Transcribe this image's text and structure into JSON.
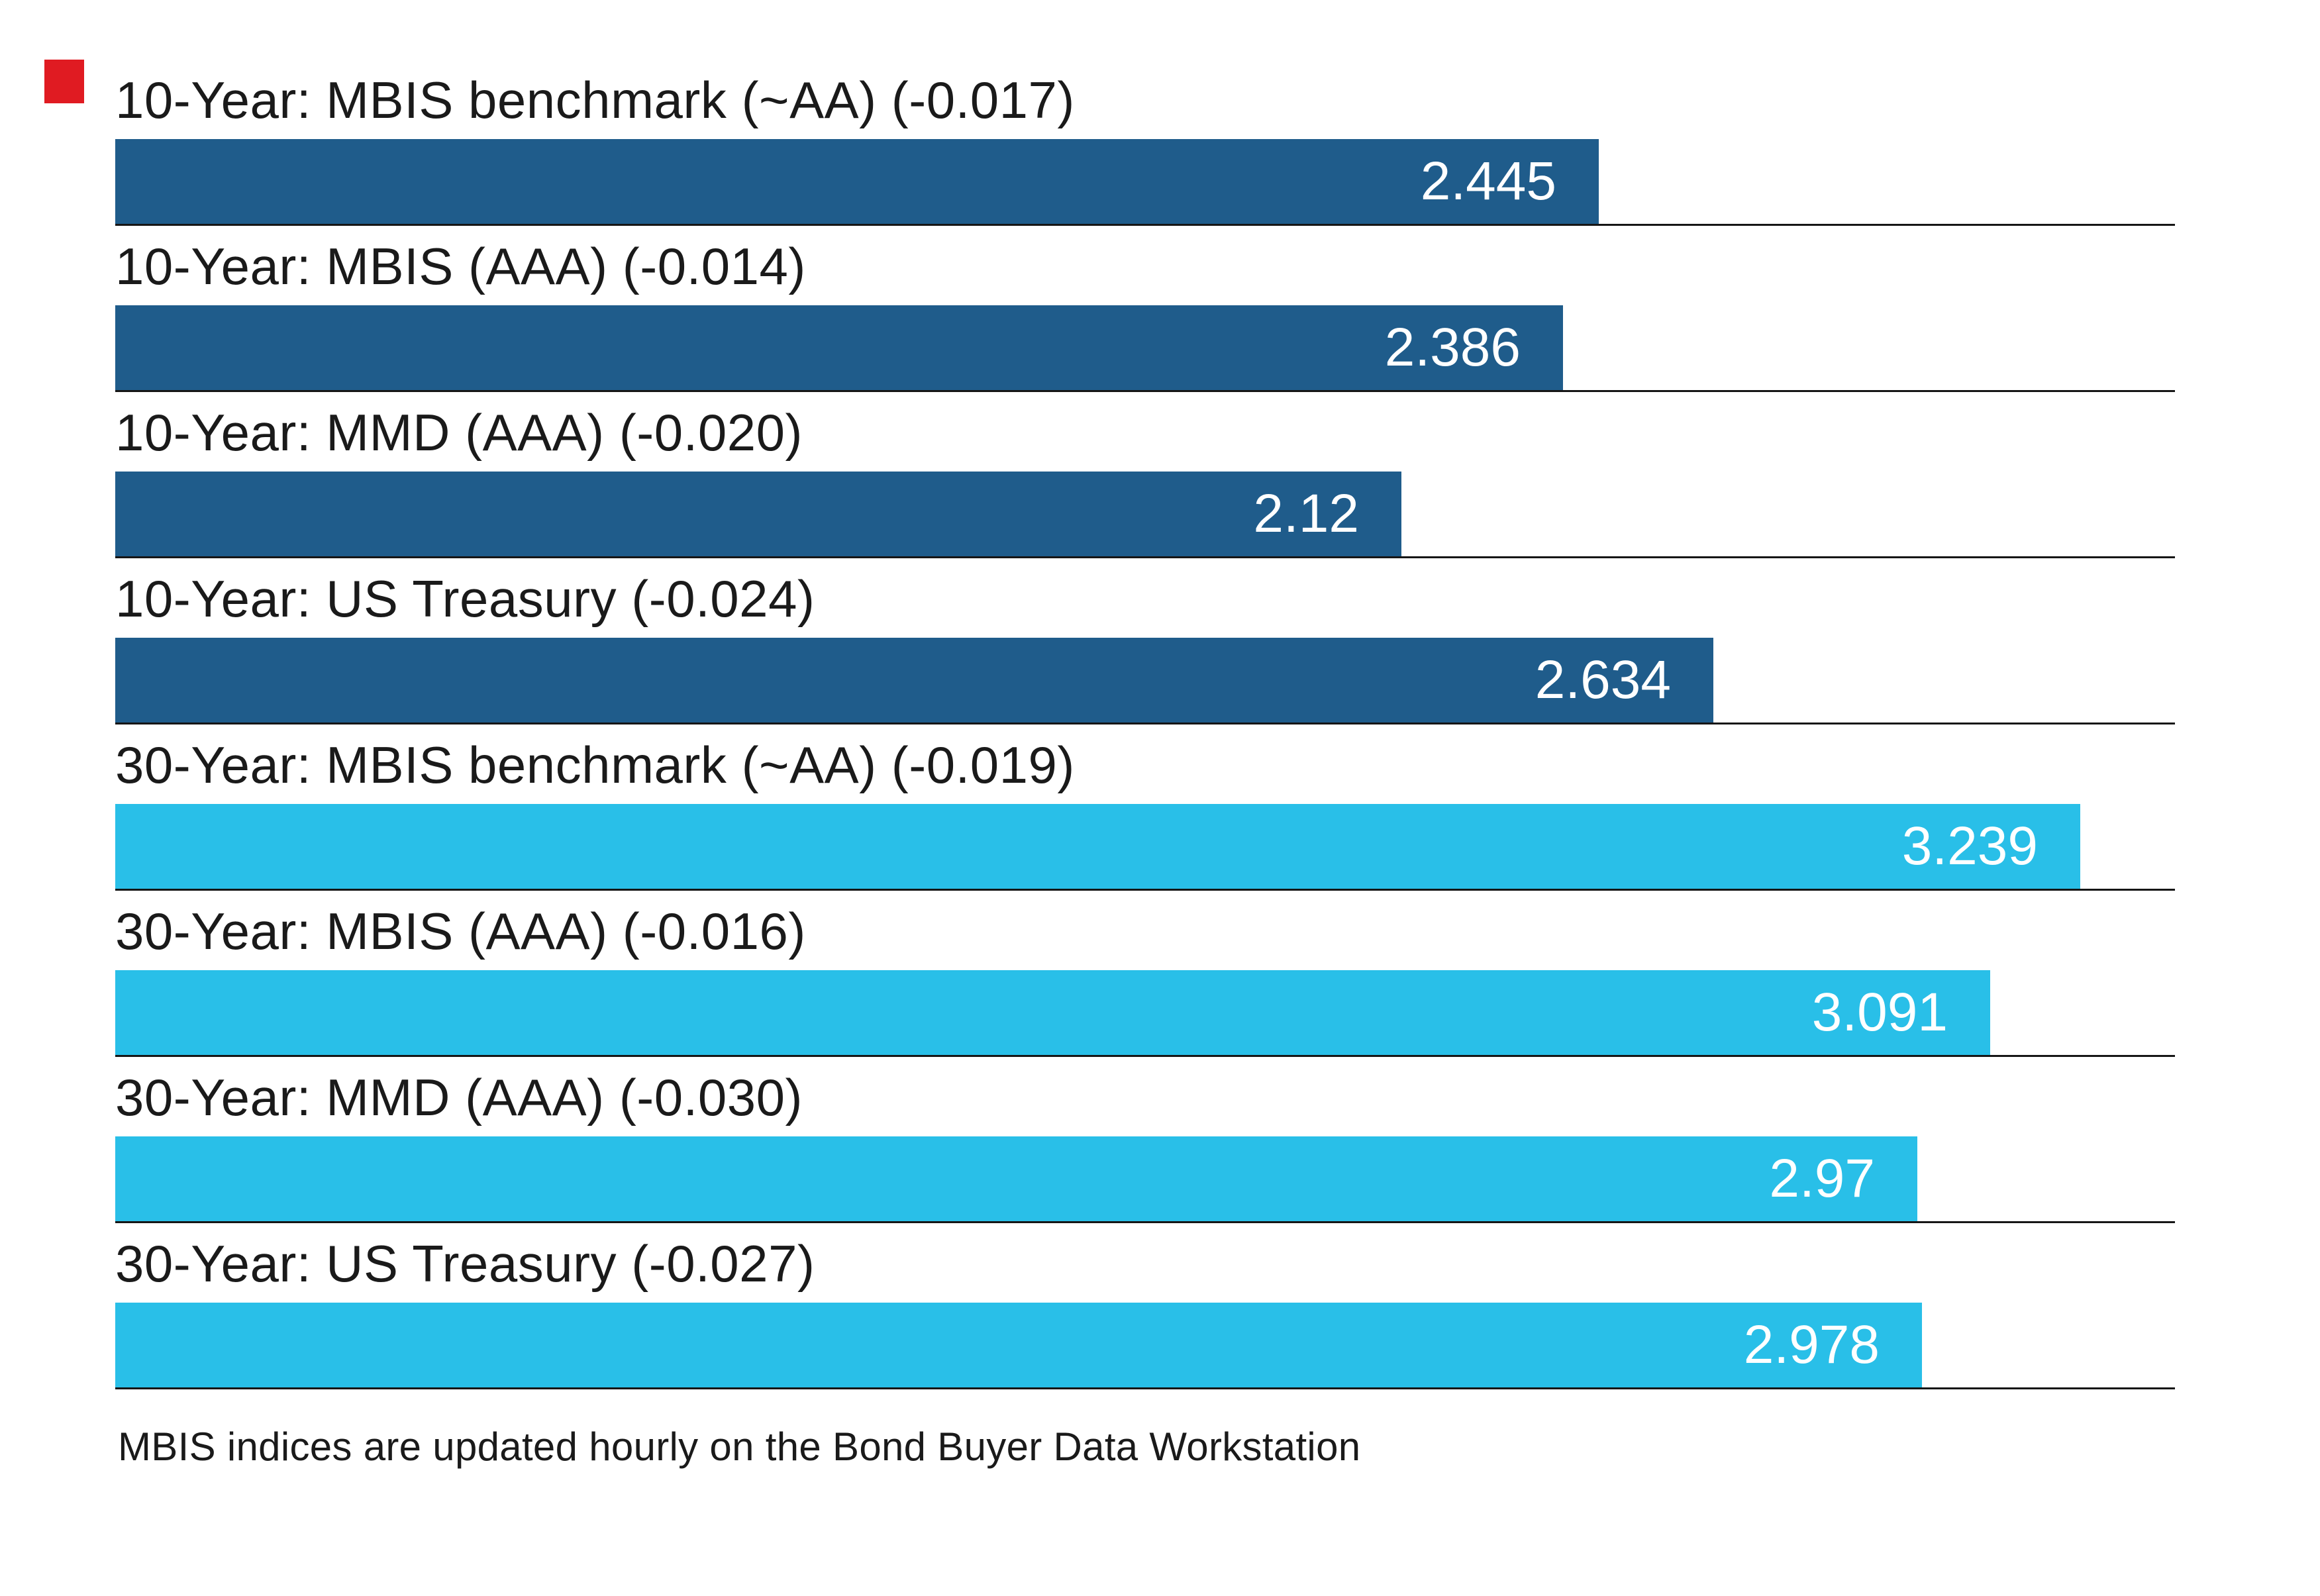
{
  "chart_data": {
    "type": "bar",
    "orientation": "horizontal",
    "categories": [
      "10-Year: MBIS benchmark (~AA) (-0.017)",
      "10-Year: MBIS (AAA) (-0.014)",
      "10-Year: MMD (AAA) (-0.020)",
      "10-Year: US Treasury (-0.024)",
      "30-Year: MBIS benchmark (~AA) (-0.019)",
      "30-Year: MBIS (AAA) (-0.016)",
      "30-Year: MMD (AAA) (-0.030)",
      "30-Year: US Treasury (-0.027)"
    ],
    "values": [
      2.445,
      2.386,
      2.12,
      2.634,
      3.239,
      3.091,
      2.97,
      2.978
    ],
    "value_labels": [
      "2.445",
      "2.386",
      "2.12",
      "2.634",
      "3.239",
      "3.091",
      "2.97",
      "2.978"
    ],
    "changes": [
      -0.017,
      -0.014,
      -0.02,
      -0.024,
      -0.019,
      -0.016,
      -0.03,
      -0.027
    ],
    "bar_colors": [
      "#1f5c8b",
      "#1f5c8b",
      "#1f5c8b",
      "#1f5c8b",
      "#29bfe8",
      "#29bfe8",
      "#29bfe8",
      "#29bfe8"
    ],
    "groups": [
      {
        "name": "10-Year",
        "color": "#1f5c8b"
      },
      {
        "name": "30-Year",
        "color": "#29bfe8"
      }
    ],
    "xlim": [
      0,
      3.4
    ],
    "grid": "row-dividers",
    "legend": "none",
    "title": "",
    "xlabel": "",
    "ylabel": "",
    "footnote": "MBIS indices are updated hourly on the Bond Buyer Data Workstation",
    "accent_color": "#e01b22",
    "value_label_color": "#ffffff",
    "label_color": "#1a1a1a"
  }
}
